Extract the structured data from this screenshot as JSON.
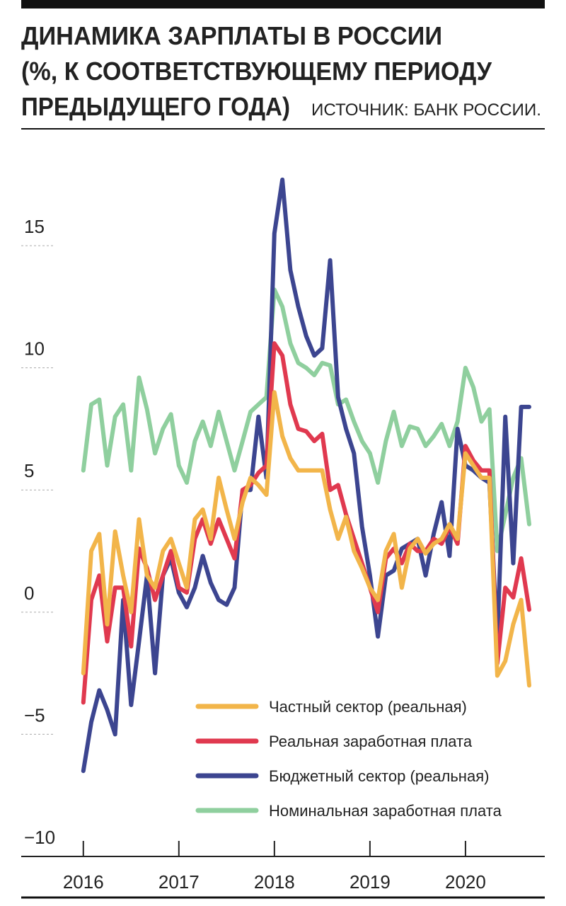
{
  "chart_data": {
    "type": "line",
    "title": [
      "ДИНАМИКА ЗАРПЛАТЫ В РОССИИ",
      "(%, К СООТВЕТСТВУЮЩЕМУ ПЕРИОДУ",
      "ПРЕДЫДУЩЕГО ГОДА)"
    ],
    "source": "ИСТОЧНИК: БАНК РОССИИ.",
    "x": [
      2016,
      2016.083,
      2016.167,
      2016.25,
      2016.333,
      2016.417,
      2016.5,
      2016.583,
      2016.667,
      2016.75,
      2016.833,
      2016.917,
      2017,
      2017.083,
      2017.167,
      2017.25,
      2017.333,
      2017.417,
      2017.5,
      2017.583,
      2017.667,
      2017.75,
      2017.833,
      2017.917,
      2018,
      2018.083,
      2018.167,
      2018.25,
      2018.333,
      2018.417,
      2018.5,
      2018.583,
      2018.667,
      2018.75,
      2018.833,
      2018.917,
      2019,
      2019.083,
      2019.167,
      2019.25,
      2019.333,
      2019.417,
      2019.5,
      2019.583,
      2019.667,
      2019.75,
      2019.833,
      2019.917,
      2020,
      2020.083,
      2020.167,
      2020.25,
      2020.333,
      2020.417,
      2020.5,
      2020.583,
      2020.667
    ],
    "series": [
      {
        "name": "Частный сектор (реальная)",
        "color": "#f2b54a",
        "values": [
          -2.5,
          2.5,
          3.2,
          -0.5,
          3.3,
          1.5,
          0,
          3.8,
          1.5,
          1,
          2.5,
          3,
          2,
          1,
          3.8,
          4.2,
          3,
          5.5,
          4.2,
          3,
          4.5,
          5.5,
          5.2,
          4.8,
          9,
          7.2,
          6.3,
          5.8,
          5.8,
          5.8,
          5.8,
          4.2,
          3,
          3.9,
          2.5,
          1.8,
          1,
          0.5,
          2.5,
          3.2,
          1,
          2.6,
          3,
          2.4,
          2.8,
          3,
          3.6,
          3,
          6.5,
          6,
          5.5,
          5.5,
          -2.6,
          -2,
          -0.5,
          0.5,
          -3
        ]
      },
      {
        "name": "Реальная заработная плата",
        "color": "#e0394f",
        "values": [
          -3.7,
          0.5,
          1.5,
          -1.2,
          1,
          1,
          -1.4,
          2.6,
          1.8,
          0.5,
          1.5,
          2.5,
          1,
          0.8,
          3,
          3.8,
          2.8,
          3.8,
          3,
          2.2,
          5,
          5.2,
          5.7,
          6,
          11,
          10.5,
          8.5,
          7.5,
          7.4,
          7,
          7.3,
          5,
          5.2,
          4,
          3,
          2,
          1,
          0,
          2.2,
          2.6,
          2,
          2.8,
          2.5,
          2.5,
          3,
          2.8,
          3.5,
          2.8,
          6.8,
          6.2,
          5.8,
          5.8,
          -2.1,
          1,
          0.6,
          2.2,
          0.1
        ]
      },
      {
        "name": "Бюджетный сектор (реальная)",
        "color": "#3c4590",
        "values": [
          -6.5,
          -4.5,
          -3.2,
          -4,
          -5,
          0.5,
          -3.8,
          -1.2,
          1.5,
          -2.5,
          1.5,
          2.2,
          0.8,
          0.2,
          1,
          2.3,
          1.2,
          0.5,
          0.3,
          1,
          5,
          5,
          8,
          5.5,
          15.5,
          17.7,
          14,
          12.5,
          11.3,
          10.5,
          10.8,
          14.4,
          8.8,
          7.5,
          6.5,
          3.5,
          1.5,
          -1,
          1.5,
          1.7,
          2.6,
          2.8,
          3,
          1.5,
          3.2,
          4.5,
          2.3,
          7.5,
          6,
          5.8,
          5.5,
          5.3,
          -1.2,
          8,
          2,
          8.4,
          8.4
        ]
      },
      {
        "name": "Номинальная заработная плата",
        "color": "#8fcf9e",
        "values": [
          5.8,
          8.5,
          8.7,
          6,
          8,
          8.5,
          5.8,
          9.6,
          8.3,
          6.5,
          7.5,
          8.1,
          6,
          5.3,
          7,
          7.8,
          6.8,
          8.2,
          7,
          5.8,
          7,
          8.2,
          8.5,
          8.8,
          13.2,
          12.5,
          11,
          10.2,
          10,
          9.7,
          10.2,
          10.1,
          8.5,
          8.7,
          7.8,
          7,
          6.5,
          5.3,
          7,
          8.2,
          6.8,
          7.6,
          7.5,
          6.8,
          7.2,
          7.7,
          6.8,
          7.8,
          10,
          9.2,
          7.8,
          8.3,
          2.5,
          4,
          5.5,
          6.3,
          3.6
        ]
      }
    ],
    "xlim": [
      2015.35,
      2020.83
    ],
    "xticks": [
      2016,
      2017,
      2018,
      2019,
      2020
    ],
    "ylim": [
      -10,
      19
    ],
    "yticks": [
      {
        "value": -10,
        "label": "−10"
      },
      {
        "value": -5,
        "label": "−5"
      },
      0,
      5,
      10,
      15
    ]
  }
}
